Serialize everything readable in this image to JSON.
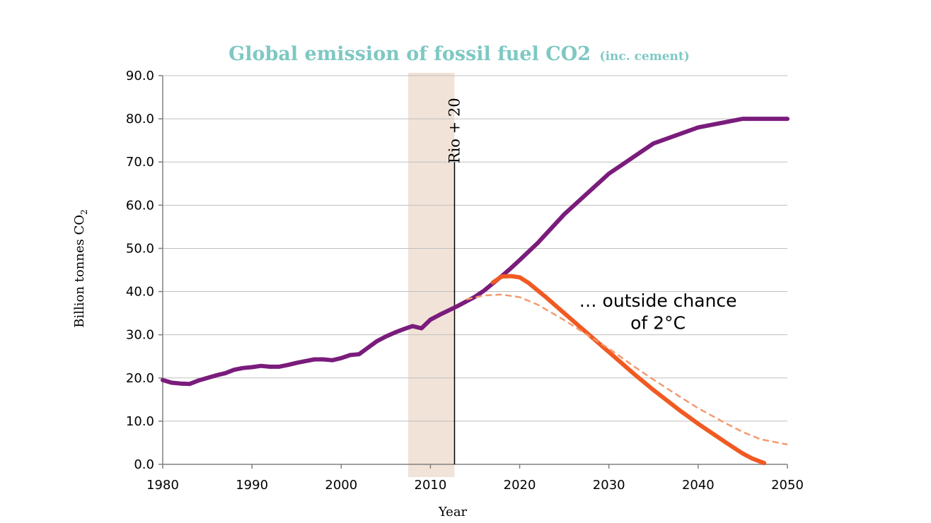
{
  "chart_data": {
    "type": "line",
    "title": "Global emission of fossil fuel CO2",
    "subtitle": "(inc. cement)",
    "xlabel": "Year",
    "ylabel": "Billion tonnes CO",
    "ylabel_subscript": "2",
    "xlim": [
      1980,
      2050
    ],
    "ylim": [
      0,
      90
    ],
    "x_ticks": [
      "1980",
      "1990",
      "2000",
      "2010",
      "2020",
      "2030",
      "2040",
      "2050"
    ],
    "y_ticks": [
      "0.0",
      "10.0",
      "20.0",
      "30.0",
      "40.0",
      "50.0",
      "60.0",
      "70.0",
      "80.0",
      "90.0"
    ],
    "grid": "horizontal",
    "shaded_band": {
      "x_start": 2007.5,
      "x_end": 2012.7,
      "color": "#f1e3d8"
    },
    "vertical_marker": {
      "x": 2012.7,
      "y_top": 70,
      "label": "Rio + 20"
    },
    "annotations": [
      {
        "text": "… outside chance",
        "x": 2035.5,
        "y": 36.5
      },
      {
        "text": "of 2°C",
        "x": 2035.5,
        "y": 31.3
      }
    ],
    "series": [
      {
        "style": "solid-thick",
        "color": "#7a1c7c",
        "points": [
          [
            1980,
            19.5
          ],
          [
            1981,
            18.9
          ],
          [
            1982,
            18.7
          ],
          [
            1983,
            18.6
          ],
          [
            1984,
            19.4
          ],
          [
            1985,
            20.0
          ],
          [
            1986,
            20.6
          ],
          [
            1987,
            21.1
          ],
          [
            1988,
            21.9
          ],
          [
            1989,
            22.3
          ],
          [
            1990,
            22.5
          ],
          [
            1991,
            22.8
          ],
          [
            1992,
            22.6
          ],
          [
            1993,
            22.6
          ],
          [
            1994,
            23.0
          ],
          [
            1995,
            23.5
          ],
          [
            1996,
            23.9
          ],
          [
            1997,
            24.3
          ],
          [
            1998,
            24.3
          ],
          [
            1999,
            24.1
          ],
          [
            2000,
            24.6
          ],
          [
            2001,
            25.3
          ],
          [
            2002,
            25.5
          ],
          [
            2003,
            27.0
          ],
          [
            2004,
            28.5
          ],
          [
            2005,
            29.6
          ],
          [
            2006,
            30.5
          ],
          [
            2007,
            31.3
          ],
          [
            2008,
            32.0
          ],
          [
            2009,
            31.5
          ],
          [
            2010,
            33.5
          ],
          [
            2011,
            34.6
          ],
          [
            2012,
            35.6
          ],
          [
            2013,
            36.6
          ],
          [
            2014,
            37.7
          ],
          [
            2015,
            38.8
          ],
          [
            2016,
            40.2
          ],
          [
            2017,
            41.9
          ],
          [
            2018,
            43.6
          ],
          [
            2019,
            45.4
          ],
          [
            2020,
            47.3
          ],
          [
            2022,
            51.2
          ],
          [
            2025,
            57.9
          ],
          [
            2030,
            67.3
          ],
          [
            2035,
            74.3
          ],
          [
            2040,
            78.0
          ],
          [
            2045,
            80.0
          ],
          [
            2050,
            80.0
          ]
        ]
      },
      {
        "style": "solid-thick",
        "color": "#f05a22",
        "points": [
          [
            2017,
            42.1
          ],
          [
            2018,
            43.5
          ],
          [
            2019,
            43.6
          ],
          [
            2020,
            43.3
          ],
          [
            2021,
            42.0
          ],
          [
            2023,
            38.6
          ],
          [
            2025,
            35.0
          ],
          [
            2028,
            29.6
          ],
          [
            2030,
            26.0
          ],
          [
            2033,
            20.6
          ],
          [
            2035,
            17.2
          ],
          [
            2038,
            12.4
          ],
          [
            2040,
            9.4
          ],
          [
            2043,
            5.2
          ],
          [
            2045,
            2.5
          ],
          [
            2046,
            1.4
          ],
          [
            2047,
            0.6
          ],
          [
            2047.4,
            0.3
          ]
        ]
      },
      {
        "style": "dashed-thin",
        "color": "#f39a6e",
        "points": [
          [
            2014,
            38.2
          ],
          [
            2016,
            39.1
          ],
          [
            2018,
            39.3
          ],
          [
            2020,
            38.7
          ],
          [
            2022,
            37.0
          ],
          [
            2025,
            33.4
          ],
          [
            2028,
            29.4
          ],
          [
            2030,
            26.8
          ],
          [
            2033,
            22.4
          ],
          [
            2035,
            19.6
          ],
          [
            2038,
            15.6
          ],
          [
            2040,
            13.0
          ],
          [
            2043,
            9.6
          ],
          [
            2045,
            7.5
          ],
          [
            2047,
            5.8
          ],
          [
            2050,
            4.6
          ]
        ]
      }
    ],
    "colors": {
      "title": "#7ec8c3",
      "grid": "#bfbfbf",
      "axis": "#808080",
      "vertical_marker": "#000000"
    }
  }
}
